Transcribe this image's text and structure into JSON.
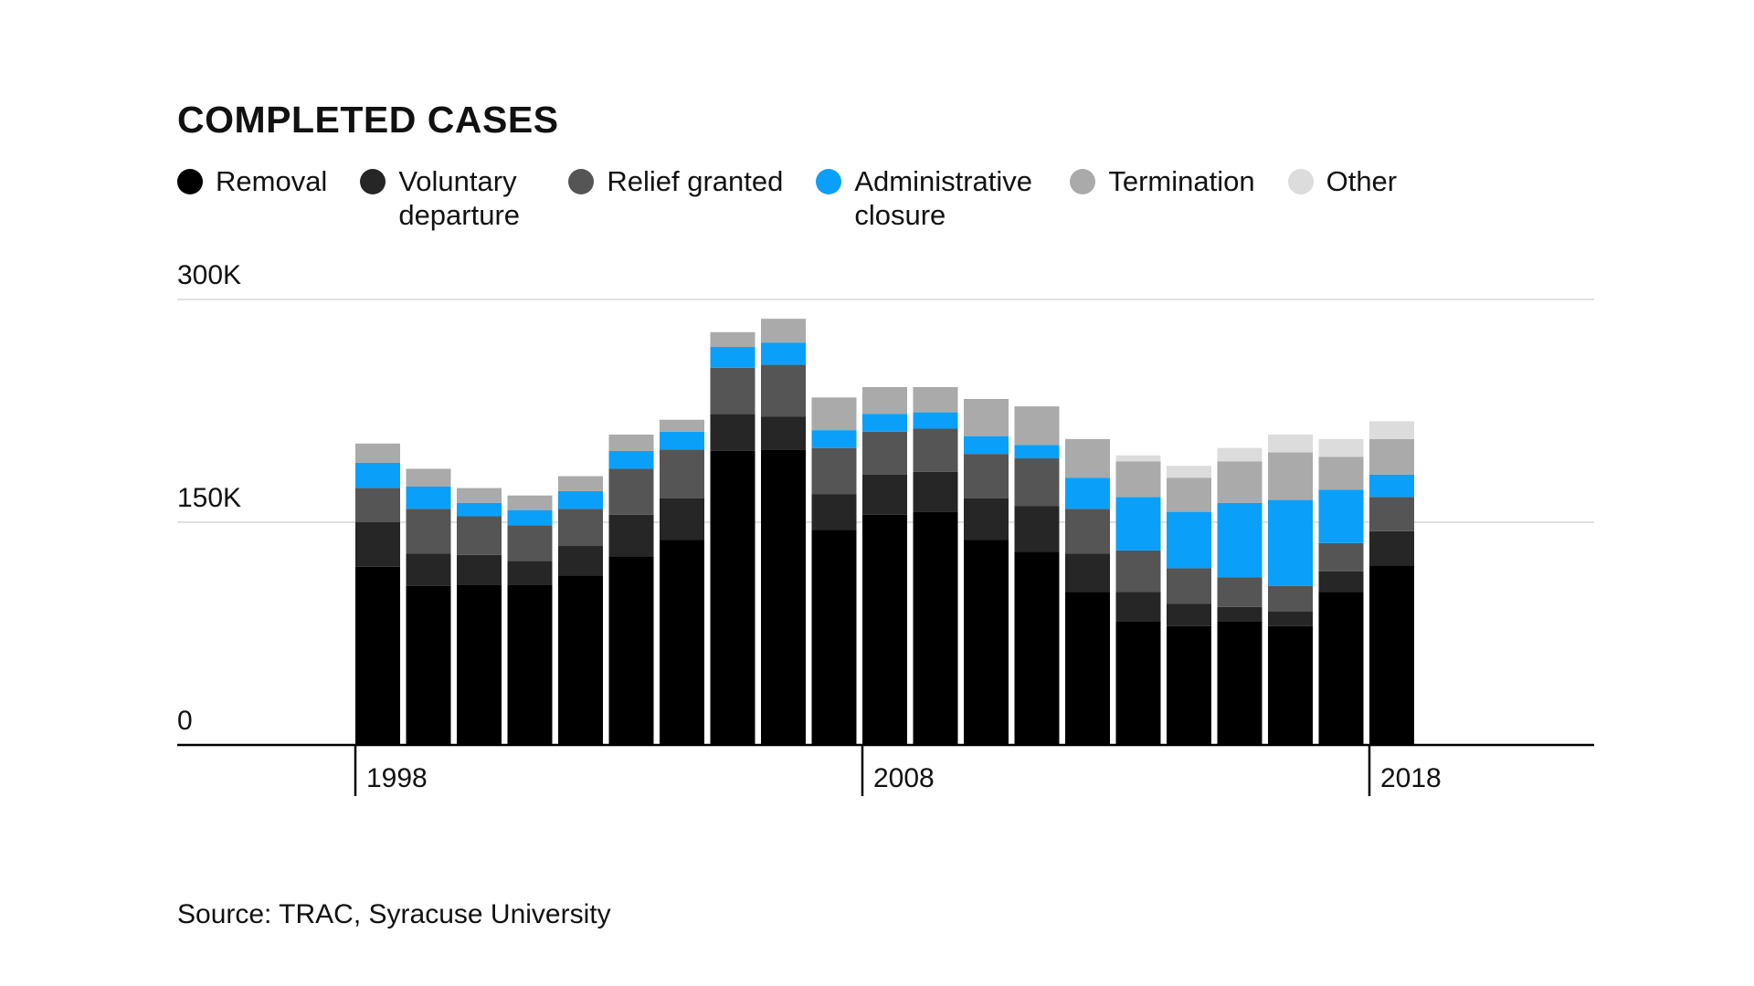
{
  "chart_data": {
    "type": "bar",
    "stacked": true,
    "title": "COMPLETED CASES",
    "categories": [
      "1998",
      "1999",
      "2000",
      "2001",
      "2002",
      "2003",
      "2004",
      "2005",
      "2006",
      "2007",
      "2008",
      "2009",
      "2010",
      "2011",
      "2012",
      "2013",
      "2014",
      "2015",
      "2016",
      "2017",
      "2018"
    ],
    "x_tick_labels": [
      "1998",
      "2008",
      "2018"
    ],
    "y_tick_labels": [
      "300K",
      "150K",
      "0"
    ],
    "y_ticks": [
      300000,
      150000,
      0
    ],
    "ylim": [
      0,
      300000
    ],
    "xlabel": "",
    "ylabel": "",
    "grid": true,
    "legend_position": "top",
    "series": [
      {
        "name": "Removal",
        "color": "#000000",
        "values": [
          120000,
          107000,
          108000,
          108000,
          114000,
          127000,
          138000,
          198000,
          199000,
          145000,
          155000,
          157000,
          138000,
          130000,
          103000,
          83000,
          80000,
          83000,
          80000,
          103000,
          121000
        ]
      },
      {
        "name": "Voluntary departure",
        "color": "#262626",
        "values": [
          30000,
          22000,
          20000,
          16000,
          20000,
          28000,
          28000,
          25000,
          22000,
          24000,
          27000,
          27000,
          28000,
          31000,
          26000,
          20000,
          15000,
          10000,
          10000,
          14000,
          23000
        ]
      },
      {
        "name": "Relief granted",
        "color": "#555555",
        "values": [
          23000,
          30000,
          26000,
          24000,
          25000,
          31000,
          33000,
          31000,
          35000,
          31000,
          29000,
          29000,
          30000,
          32000,
          30000,
          28000,
          24000,
          20000,
          17000,
          19000,
          23000
        ]
      },
      {
        "name": "Administrative closure",
        "color": "#0aa0fa",
        "values": [
          17000,
          15000,
          9000,
          10000,
          12000,
          12000,
          12000,
          14000,
          15000,
          12000,
          12000,
          11000,
          12000,
          9000,
          21000,
          36000,
          38000,
          50000,
          58000,
          36000,
          15000
        ]
      },
      {
        "name": "Termination",
        "color": "#aaaaaa",
        "values": [
          13000,
          12000,
          10000,
          10000,
          10000,
          11000,
          8000,
          10000,
          16000,
          22000,
          18000,
          17000,
          25000,
          26000,
          26000,
          24000,
          23000,
          28000,
          32000,
          22000,
          24000
        ]
      },
      {
        "name": "Other",
        "color": "#dcdcdc",
        "values": [
          0,
          0,
          0,
          0,
          0,
          0,
          0,
          0,
          0,
          0,
          0,
          0,
          0,
          0,
          0,
          4000,
          8000,
          9000,
          12000,
          12000,
          12000
        ]
      }
    ]
  },
  "legend": [
    {
      "label": "Removal",
      "color": "#000000"
    },
    {
      "label": "Voluntary departure",
      "color": "#262626"
    },
    {
      "label": "Relief granted",
      "color": "#555555"
    },
    {
      "label": "Administrative closure",
      "color": "#0aa0fa"
    },
    {
      "label": "Termination",
      "color": "#aaaaaa"
    },
    {
      "label": "Other",
      "color": "#dcdcdc"
    }
  ],
  "source": "Source: TRAC, Syracuse University",
  "colors": {
    "grid": "#e0e0e0",
    "axis": "#000000"
  }
}
